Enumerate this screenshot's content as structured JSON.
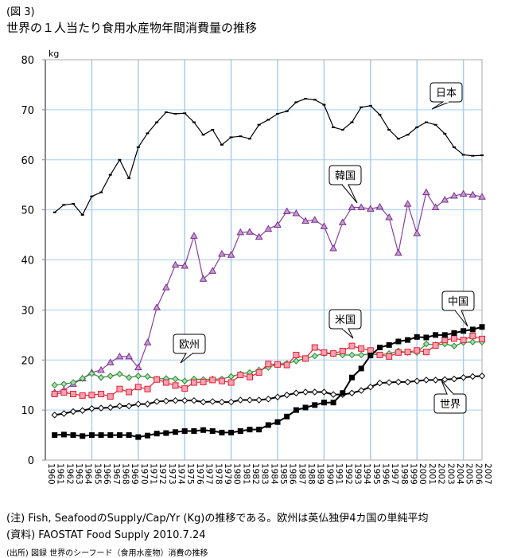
{
  "figure_label": "(図 3)",
  "note": "(注) Fish, SeafoodのSupply/Cap/Yr (Kg)の推移である。欧州は英仏独伊4カ国の単純平均",
  "source": "(資料) FAOSTAT  Food Supply 2010.7.24",
  "origin": "(出所) 図録 世界のシーフード（食用水産物）消費の推移",
  "chart_data": {
    "type": "line",
    "title": "世界の１人当たり食用水産物年間消費量の推移",
    "ylabel": "kg",
    "xlabel": "",
    "ylim": [
      0,
      80
    ],
    "yticks": [
      0,
      10,
      20,
      30,
      40,
      50,
      60,
      70,
      80
    ],
    "xlim": [
      1960,
      2007
    ],
    "x_tick_labels": [
      "1960",
      "1961",
      "1962",
      "1963",
      "1964",
      "1965",
      "1966",
      "1967",
      "1968",
      "1969",
      "1970",
      "1971",
      "1972",
      "1973",
      "1974",
      "1975",
      "1976",
      "1977",
      "1978",
      "1979",
      "1980",
      "1981",
      "1982",
      "1983",
      "1984",
      "1985",
      "1986",
      "1987",
      "1988",
      "1989",
      "1990",
      "1991",
      "1992",
      "1993",
      "1994",
      "1995",
      "1996",
      "1997",
      "1998",
      "1999",
      "2000",
      "2001",
      "2002",
      "2003",
      "2004",
      "2005",
      "2006",
      "2007"
    ],
    "grid": true,
    "x_start": 1961,
    "series": [
      {
        "name": "日本",
        "color": "#000000",
        "marker": "dash",
        "values": [
          49.5,
          51,
          51.2,
          49,
          52.7,
          53.5,
          57,
          60,
          56.3,
          62.5,
          65.3,
          67.5,
          69.5,
          69.2,
          69.3,
          67.5,
          65,
          66,
          63,
          64.5,
          64.7,
          64.2,
          67,
          68,
          69.2,
          69.7,
          71.5,
          72.2,
          72,
          71,
          66.5,
          66,
          67.5,
          70.5,
          70.8,
          69,
          66,
          64.2,
          65,
          66.5,
          67.5,
          67,
          65.2,
          62.5,
          61,
          60.8,
          60.9
        ]
      },
      {
        "name": "韓国",
        "color": "#8b3f9a",
        "marker": "triangle",
        "values": [
          13.5,
          14,
          15.2,
          16.3,
          17.5,
          18,
          19.5,
          20.7,
          20.7,
          18.5,
          23.5,
          30.5,
          34.5,
          39,
          38.8,
          44.8,
          36.2,
          37.8,
          41.2,
          41,
          45.5,
          45.6,
          44.6,
          46.2,
          47,
          49.7,
          49.3,
          47.8,
          48,
          46.7,
          42.3,
          47.5,
          50.5,
          50.5,
          50.2,
          50.6,
          48.5,
          41.4,
          51.2,
          45.3,
          53.5,
          50.5,
          52,
          52.8,
          53.2,
          53,
          52.6
        ]
      },
      {
        "name": "欧州",
        "color": "#2e8b3a",
        "marker": "diamond",
        "values": [
          15,
          15.2,
          15.5,
          16.3,
          17.3,
          16.5,
          16.8,
          17.2,
          16.5,
          16.8,
          16.7,
          16.2,
          16.3,
          16.2,
          15.8,
          16.2,
          16.1,
          16.2,
          16.2,
          16.7,
          17.2,
          17.5,
          18,
          18.5,
          19.2,
          19.3,
          19.8,
          20.3,
          20.8,
          21.3,
          21.2,
          21,
          21,
          21,
          21.2,
          21,
          21.3,
          21.8,
          21.5,
          21.5,
          23.2,
          23,
          23.2,
          22.8,
          23.5,
          23.6,
          23.6
        ]
      },
      {
        "name": "米国",
        "color": "#e8202a",
        "marker": "square-pink",
        "values": [
          13.2,
          13.5,
          13.2,
          12.9,
          13,
          13.2,
          12.7,
          14.2,
          13.6,
          14.6,
          14.2,
          16.1,
          15.5,
          14.9,
          14.3,
          15.5,
          15.6,
          16,
          15.8,
          15.5,
          17,
          16.6,
          17.5,
          19.2,
          19.1,
          19,
          21,
          20.3,
          22.5,
          21.5,
          21.3,
          21.8,
          22.8,
          22.3,
          21.9,
          21,
          20.7,
          21.5,
          21.6,
          21.9,
          21.6,
          22.9,
          24,
          24.3,
          24,
          24.8,
          24.2
        ]
      },
      {
        "name": "世界",
        "color": "#000000",
        "marker": "diamond-open",
        "values": [
          9,
          9.3,
          9.7,
          9.9,
          10.3,
          10.4,
          10.5,
          10.8,
          10.8,
          11.2,
          11.2,
          11.7,
          11.8,
          11.9,
          11.9,
          11.9,
          11.6,
          11.7,
          11.6,
          11.6,
          12,
          12,
          12,
          12.2,
          12.6,
          13,
          13.4,
          13.6,
          13.6,
          13.6,
          13.1,
          13.1,
          13.4,
          13.9,
          14.6,
          15.4,
          15.5,
          15.6,
          15.6,
          15.8,
          16,
          16,
          16.1,
          16.2,
          16.5,
          16.7,
          16.8
        ]
      },
      {
        "name": "中国",
        "color": "#000000",
        "marker": "square-black",
        "values": [
          5,
          5.1,
          5,
          4.8,
          5,
          5,
          5,
          5,
          5,
          4.6,
          4.9,
          5.3,
          5.4,
          5.6,
          5.8,
          5.8,
          6,
          5.8,
          5.5,
          5.5,
          5.8,
          6.1,
          6.1,
          7,
          7.6,
          8.7,
          10,
          10.5,
          11,
          11.5,
          11.5,
          13.4,
          16.5,
          18.3,
          20.9,
          22.5,
          23,
          23.7,
          24,
          24.6,
          24.5,
          25,
          25,
          25.4,
          25.8,
          26.1,
          26.6
        ]
      }
    ]
  }
}
